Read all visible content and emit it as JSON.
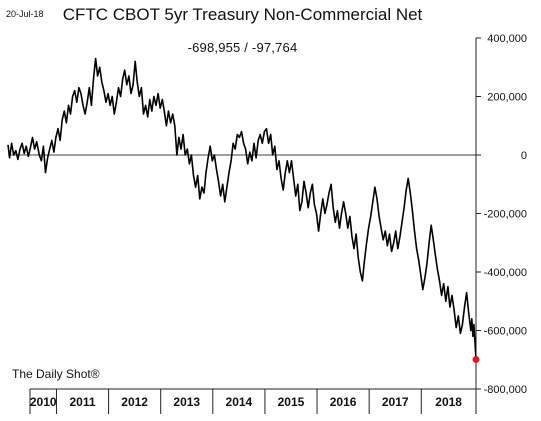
{
  "header": {
    "date": "20-Jul-18",
    "title": "CFTC CBOT 5yr Treasury Non-Commercial Net",
    "subtitle": "-698,955  /  -97,764"
  },
  "footer": {
    "credit": "The Daily Shot®"
  },
  "colors": {
    "line": "#000000",
    "last_point": "#e8141b",
    "zero_line": "#000000",
    "axis": "#222222"
  },
  "chart_data": {
    "type": "line",
    "title": "CFTC CBOT 5yr Treasury Non-Commercial Net",
    "xlabel": "",
    "ylabel": "",
    "x_range": [
      2009.57,
      2018.55
    ],
    "ylim": [
      -800000,
      400000
    ],
    "y_ticks": [
      400000,
      200000,
      0,
      -200000,
      -400000,
      -600000,
      -800000
    ],
    "y_tick_labels": [
      "400,000",
      "200,000",
      "0",
      "-200,000",
      "-400,000",
      "-600,000",
      "-800,000"
    ],
    "x_tick_labels": [
      "2010",
      "2011",
      "2012",
      "2013",
      "2014",
      "2015",
      "2016",
      "2017",
      "2018"
    ],
    "x_tick_centers": [
      2010.0,
      2011.0,
      2012.0,
      2013.0,
      2014.0,
      2015.0,
      2016.0,
      2017.0,
      2018.0
    ],
    "year_boundaries": [
      2010.5,
      2011.5,
      2012.5,
      2013.5,
      2014.5,
      2015.5,
      2016.5,
      2017.5
    ],
    "grid": false,
    "y_axis_position": "right",
    "zero_line": true,
    "last_point_marker": {
      "x": 2018.55,
      "y": -698955
    },
    "series": [
      {
        "values": [
          [
            2009.57,
            35000
          ],
          [
            2009.6,
            -10000
          ],
          [
            2009.64,
            40000
          ],
          [
            2009.68,
            0
          ],
          [
            2009.72,
            15000
          ],
          [
            2009.76,
            -15000
          ],
          [
            2009.8,
            20000
          ],
          [
            2009.84,
            40000
          ],
          [
            2009.88,
            5000
          ],
          [
            2009.92,
            30000
          ],
          [
            2009.96,
            -5000
          ],
          [
            2010.0,
            25000
          ],
          [
            2010.04,
            60000
          ],
          [
            2010.08,
            20000
          ],
          [
            2010.12,
            45000
          ],
          [
            2010.17,
            0
          ],
          [
            2010.21,
            -20000
          ],
          [
            2010.25,
            30000
          ],
          [
            2010.29,
            -60000
          ],
          [
            2010.33,
            -10000
          ],
          [
            2010.37,
            20000
          ],
          [
            2010.41,
            50000
          ],
          [
            2010.45,
            10000
          ],
          [
            2010.49,
            60000
          ],
          [
            2010.53,
            90000
          ],
          [
            2010.57,
            50000
          ],
          [
            2010.61,
            120000
          ],
          [
            2010.65,
            150000
          ],
          [
            2010.69,
            110000
          ],
          [
            2010.73,
            170000
          ],
          [
            2010.77,
            140000
          ],
          [
            2010.81,
            200000
          ],
          [
            2010.85,
            220000
          ],
          [
            2010.89,
            180000
          ],
          [
            2010.93,
            230000
          ],
          [
            2010.97,
            210000
          ],
          [
            2011.01,
            170000
          ],
          [
            2011.05,
            140000
          ],
          [
            2011.09,
            180000
          ],
          [
            2011.13,
            230000
          ],
          [
            2011.17,
            170000
          ],
          [
            2011.21,
            260000
          ],
          [
            2011.25,
            330000
          ],
          [
            2011.29,
            270000
          ],
          [
            2011.33,
            300000
          ],
          [
            2011.37,
            250000
          ],
          [
            2011.41,
            220000
          ],
          [
            2011.45,
            180000
          ],
          [
            2011.49,
            210000
          ],
          [
            2011.53,
            170000
          ],
          [
            2011.57,
            200000
          ],
          [
            2011.61,
            140000
          ],
          [
            2011.65,
            180000
          ],
          [
            2011.69,
            230000
          ],
          [
            2011.73,
            200000
          ],
          [
            2011.77,
            260000
          ],
          [
            2011.81,
            290000
          ],
          [
            2011.85,
            240000
          ],
          [
            2011.89,
            270000
          ],
          [
            2011.93,
            210000
          ],
          [
            2011.97,
            240000
          ],
          [
            2012.01,
            320000
          ],
          [
            2012.05,
            250000
          ],
          [
            2012.09,
            200000
          ],
          [
            2012.13,
            230000
          ],
          [
            2012.17,
            140000
          ],
          [
            2012.21,
            170000
          ],
          [
            2012.25,
            130000
          ],
          [
            2012.29,
            190000
          ],
          [
            2012.33,
            150000
          ],
          [
            2012.37,
            200000
          ],
          [
            2012.41,
            170000
          ],
          [
            2012.45,
            210000
          ],
          [
            2012.49,
            160000
          ],
          [
            2012.53,
            190000
          ],
          [
            2012.57,
            150000
          ],
          [
            2012.61,
            100000
          ],
          [
            2012.65,
            150000
          ],
          [
            2012.69,
            110000
          ],
          [
            2012.73,
            140000
          ],
          [
            2012.77,
            100000
          ],
          [
            2012.81,
            0
          ],
          [
            2012.85,
            60000
          ],
          [
            2012.89,
            20000
          ],
          [
            2012.93,
            70000
          ],
          [
            2012.97,
            0
          ],
          [
            2013.01,
            20000
          ],
          [
            2013.05,
            -30000
          ],
          [
            2013.09,
            0
          ],
          [
            2013.13,
            -70000
          ],
          [
            2013.17,
            -110000
          ],
          [
            2013.21,
            -70000
          ],
          [
            2013.25,
            -150000
          ],
          [
            2013.29,
            -110000
          ],
          [
            2013.33,
            -130000
          ],
          [
            2013.37,
            -60000
          ],
          [
            2013.41,
            -10000
          ],
          [
            2013.45,
            30000
          ],
          [
            2013.49,
            -20000
          ],
          [
            2013.53,
            0
          ],
          [
            2013.57,
            -50000
          ],
          [
            2013.61,
            -90000
          ],
          [
            2013.65,
            -140000
          ],
          [
            2013.69,
            -100000
          ],
          [
            2013.73,
            -160000
          ],
          [
            2013.77,
            -110000
          ],
          [
            2013.81,
            -60000
          ],
          [
            2013.85,
            -20000
          ],
          [
            2013.89,
            40000
          ],
          [
            2013.93,
            20000
          ],
          [
            2013.97,
            70000
          ],
          [
            2014.01,
            60000
          ],
          [
            2014.05,
            80000
          ],
          [
            2014.09,
            40000
          ],
          [
            2014.13,
            20000
          ],
          [
            2014.17,
            -30000
          ],
          [
            2014.21,
            10000
          ],
          [
            2014.25,
            -20000
          ],
          [
            2014.29,
            40000
          ],
          [
            2014.33,
            -10000
          ],
          [
            2014.37,
            50000
          ],
          [
            2014.41,
            70000
          ],
          [
            2014.45,
            40000
          ],
          [
            2014.49,
            80000
          ],
          [
            2014.53,
            90000
          ],
          [
            2014.57,
            40000
          ],
          [
            2014.61,
            70000
          ],
          [
            2014.65,
            0
          ],
          [
            2014.69,
            30000
          ],
          [
            2014.73,
            -50000
          ],
          [
            2014.77,
            -20000
          ],
          [
            2014.81,
            -80000
          ],
          [
            2014.85,
            -120000
          ],
          [
            2014.89,
            -60000
          ],
          [
            2014.93,
            -20000
          ],
          [
            2014.97,
            -60000
          ],
          [
            2015.01,
            -20000
          ],
          [
            2015.05,
            -80000
          ],
          [
            2015.09,
            -140000
          ],
          [
            2015.13,
            -100000
          ],
          [
            2015.17,
            -190000
          ],
          [
            2015.21,
            -160000
          ],
          [
            2015.25,
            -90000
          ],
          [
            2015.29,
            -130000
          ],
          [
            2015.33,
            -180000
          ],
          [
            2015.37,
            -130000
          ],
          [
            2015.41,
            -100000
          ],
          [
            2015.45,
            -170000
          ],
          [
            2015.49,
            -200000
          ],
          [
            2015.53,
            -260000
          ],
          [
            2015.57,
            -200000
          ],
          [
            2015.61,
            -150000
          ],
          [
            2015.65,
            -200000
          ],
          [
            2015.69,
            -170000
          ],
          [
            2015.73,
            -130000
          ],
          [
            2015.77,
            -100000
          ],
          [
            2015.81,
            -180000
          ],
          [
            2015.85,
            -230000
          ],
          [
            2015.89,
            -190000
          ],
          [
            2015.93,
            -250000
          ],
          [
            2015.97,
            -200000
          ],
          [
            2016.01,
            -160000
          ],
          [
            2016.05,
            -200000
          ],
          [
            2016.09,
            -250000
          ],
          [
            2016.13,
            -210000
          ],
          [
            2016.17,
            -280000
          ],
          [
            2016.21,
            -320000
          ],
          [
            2016.25,
            -270000
          ],
          [
            2016.29,
            -350000
          ],
          [
            2016.33,
            -400000
          ],
          [
            2016.37,
            -430000
          ],
          [
            2016.41,
            -360000
          ],
          [
            2016.45,
            -300000
          ],
          [
            2016.49,
            -250000
          ],
          [
            2016.53,
            -210000
          ],
          [
            2016.57,
            -160000
          ],
          [
            2016.61,
            -110000
          ],
          [
            2016.65,
            -150000
          ],
          [
            2016.69,
            -210000
          ],
          [
            2016.73,
            -250000
          ],
          [
            2016.77,
            -290000
          ],
          [
            2016.81,
            -260000
          ],
          [
            2016.85,
            -310000
          ],
          [
            2016.89,
            -270000
          ],
          [
            2016.93,
            -330000
          ],
          [
            2016.97,
            -300000
          ],
          [
            2017.01,
            -260000
          ],
          [
            2017.05,
            -320000
          ],
          [
            2017.09,
            -280000
          ],
          [
            2017.13,
            -230000
          ],
          [
            2017.17,
            -180000
          ],
          [
            2017.21,
            -120000
          ],
          [
            2017.25,
            -80000
          ],
          [
            2017.29,
            -130000
          ],
          [
            2017.33,
            -190000
          ],
          [
            2017.37,
            -260000
          ],
          [
            2017.41,
            -320000
          ],
          [
            2017.45,
            -360000
          ],
          [
            2017.49,
            -410000
          ],
          [
            2017.53,
            -460000
          ],
          [
            2017.57,
            -420000
          ],
          [
            2017.61,
            -370000
          ],
          [
            2017.65,
            -300000
          ],
          [
            2017.69,
            -240000
          ],
          [
            2017.73,
            -290000
          ],
          [
            2017.77,
            -340000
          ],
          [
            2017.81,
            -390000
          ],
          [
            2017.85,
            -430000
          ],
          [
            2017.89,
            -480000
          ],
          [
            2017.93,
            -440000
          ],
          [
            2017.97,
            -500000
          ],
          [
            2018.01,
            -450000
          ],
          [
            2018.05,
            -520000
          ],
          [
            2018.09,
            -480000
          ],
          [
            2018.13,
            -530000
          ],
          [
            2018.17,
            -590000
          ],
          [
            2018.21,
            -550000
          ],
          [
            2018.25,
            -610000
          ],
          [
            2018.29,
            -580000
          ],
          [
            2018.33,
            -520000
          ],
          [
            2018.37,
            -470000
          ],
          [
            2018.41,
            -540000
          ],
          [
            2018.45,
            -600000
          ],
          [
            2018.47,
            -560000
          ],
          [
            2018.49,
            -620000
          ],
          [
            2018.51,
            -580000
          ],
          [
            2018.53,
            -640000
          ],
          [
            2018.55,
            -698955
          ]
        ]
      }
    ]
  }
}
